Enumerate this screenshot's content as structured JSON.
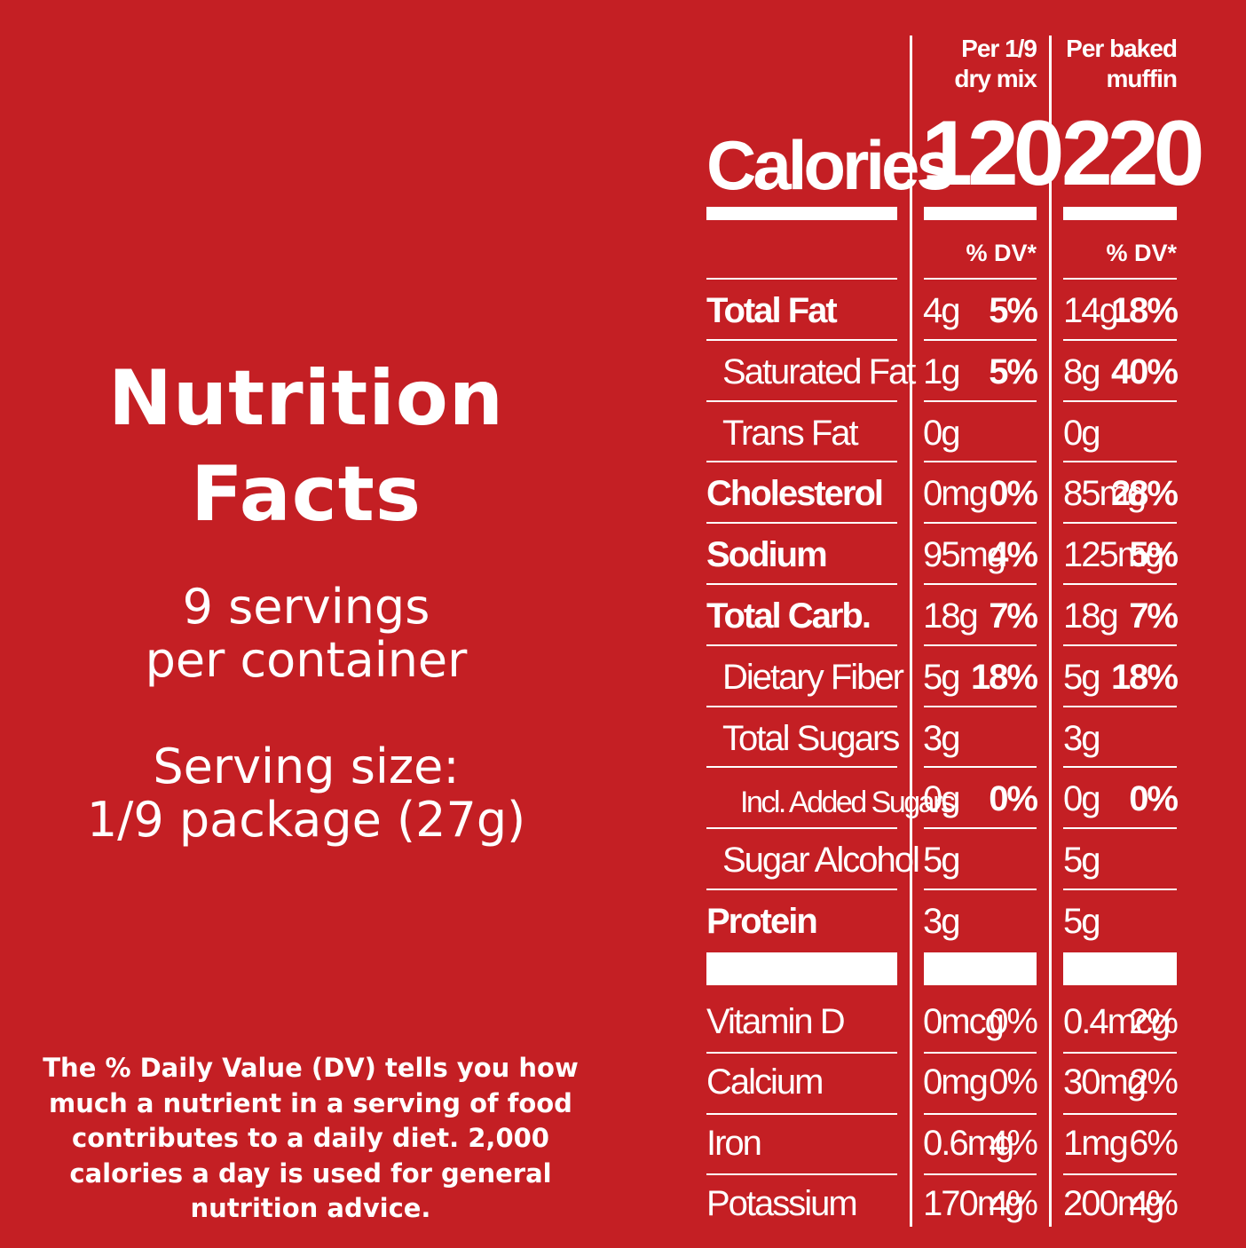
{
  "title_line1": "Nutrition",
  "title_line2": "Facts",
  "servings_line1": "9 servings",
  "servings_line2": "per container",
  "serving_size_line1": "Serving size:",
  "serving_size_line2": "1/9 package (27g)",
  "footnote": [
    "The % Daily Value (DV) tells you how",
    "much a nutrient in a serving of food",
    "contributes to a daily diet. 2,000",
    "calories a day is used for general",
    "nutrition advice."
  ],
  "columns": [
    {
      "header_line1": "Per 1/9",
      "header_line2": "dry mix",
      "calories": "120",
      "dv_header": "% DV*"
    },
    {
      "header_line1": "Per baked",
      "header_line2": "muffin",
      "calories": "220",
      "dv_header": "% DV*"
    }
  ],
  "calories_label": "Calories",
  "rows": [
    {
      "label": "Total Fat",
      "bold": true,
      "indent": 0,
      "c1_amt": "4g",
      "c1_dv": "5%",
      "c2_amt": "14g",
      "c2_dv": "18%"
    },
    {
      "label": "Saturated Fat",
      "bold": false,
      "indent": 1,
      "c1_amt": "1g",
      "c1_dv": "5%",
      "c2_amt": "8g",
      "c2_dv": "40%"
    },
    {
      "label": "Trans Fat",
      "bold": false,
      "indent": 1,
      "c1_amt": "0g",
      "c1_dv": "",
      "c2_amt": "0g",
      "c2_dv": ""
    },
    {
      "label": "Cholesterol",
      "bold": true,
      "indent": 0,
      "c1_amt": "0mg",
      "c1_dv": "0%",
      "c2_amt": "85mg",
      "c2_dv": "28%"
    },
    {
      "label": "Sodium",
      "bold": true,
      "indent": 0,
      "c1_amt": "95mg",
      "c1_dv": "4%",
      "c2_amt": "125mg",
      "c2_dv": "5%"
    },
    {
      "label": "Total Carb.",
      "bold": true,
      "indent": 0,
      "c1_amt": "18g",
      "c1_dv": "7%",
      "c2_amt": "18g",
      "c2_dv": "7%"
    },
    {
      "label": "Dietary Fiber",
      "bold": false,
      "indent": 1,
      "c1_amt": "5g",
      "c1_dv": "18%",
      "c2_amt": "5g",
      "c2_dv": "18%"
    },
    {
      "label": "Total Sugars",
      "bold": false,
      "indent": 1,
      "c1_amt": "3g",
      "c1_dv": "",
      "c2_amt": "3g",
      "c2_dv": ""
    },
    {
      "label": "Incl. Added Sugars",
      "bold": false,
      "indent": 2,
      "c1_amt": "0g",
      "c1_dv": "0%",
      "c2_amt": "0g",
      "c2_dv": "0%"
    },
    {
      "label": "Sugar Alcohol",
      "bold": false,
      "indent": 1,
      "c1_amt": "5g",
      "c1_dv": "",
      "c2_amt": "5g",
      "c2_dv": ""
    },
    {
      "label": "Protein",
      "bold": true,
      "indent": 0,
      "c1_amt": "3g",
      "c1_dv": "",
      "c2_amt": "5g",
      "c2_dv": ""
    }
  ],
  "vitamins": [
    {
      "label": "Vitamin D",
      "c1_amt": "0mcg",
      "c1_dv": "0%",
      "c2_amt": "0.4mcg",
      "c2_dv": "2%"
    },
    {
      "label": "Calcium",
      "c1_amt": "0mg",
      "c1_dv": "0%",
      "c2_amt": "30mg",
      "c2_dv": "2%"
    },
    {
      "label": "Iron",
      "c1_amt": "0.6mg",
      "c1_dv": "4%",
      "c2_amt": "1mg",
      "c2_dv": "6%"
    },
    {
      "label": "Potassium",
      "c1_amt": "170mg",
      "c1_dv": "4%",
      "c2_amt": "200mg",
      "c2_dv": "4%"
    }
  ]
}
